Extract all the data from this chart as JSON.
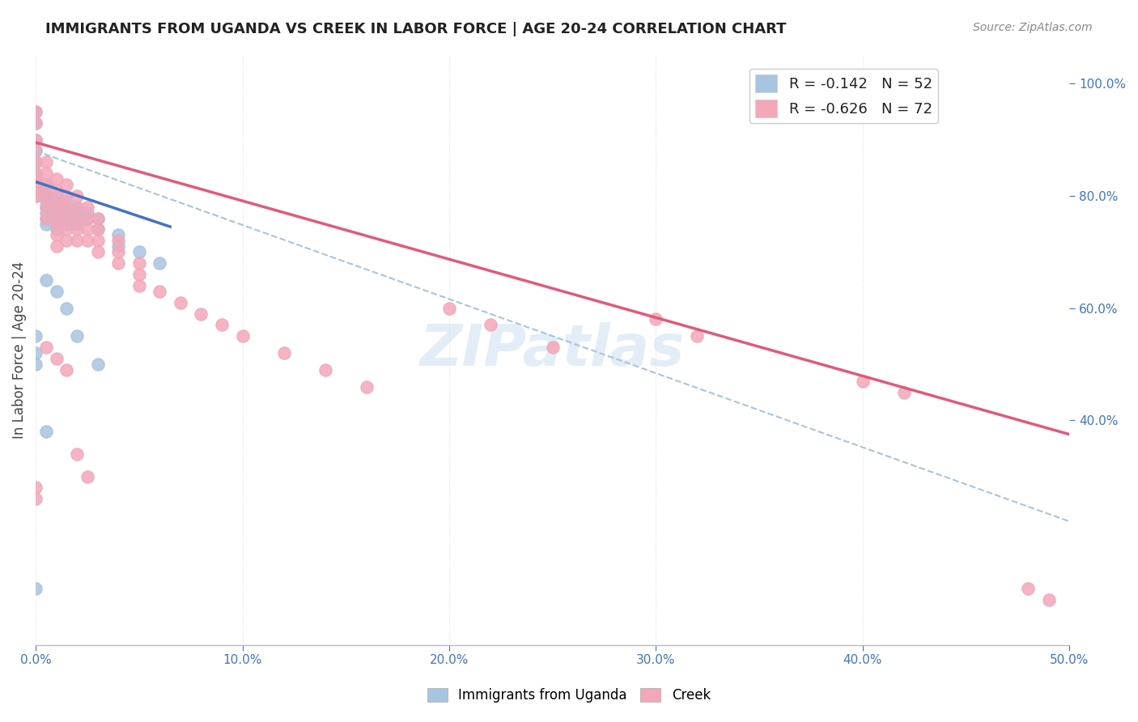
{
  "title": "IMMIGRANTS FROM UGANDA VS CREEK IN LABOR FORCE | AGE 20-24 CORRELATION CHART",
  "source": "Source: ZipAtlas.com",
  "xlabel_bottom": "",
  "ylabel": "In Labor Force | Age 20-24",
  "x_min": 0.0,
  "x_max": 0.5,
  "y_min": 0.0,
  "y_max": 1.05,
  "x_ticks": [
    0.0,
    0.1,
    0.2,
    0.3,
    0.4,
    0.5
  ],
  "x_tick_labels": [
    "0.0%",
    "10.0%",
    "20.0%",
    "30.0%",
    "40.0%",
    "50.0%"
  ],
  "y_ticks_left": [],
  "y_ticks_right": [
    0.4,
    0.6,
    0.8,
    1.0
  ],
  "y_tick_labels_right": [
    "40.0%",
    "60.0%",
    "80.0%",
    "100.0%"
  ],
  "uganda_color": "#a8c4e0",
  "creek_color": "#f4a7b9",
  "uganda_line_color": "#4472c4",
  "creek_line_color": "#e05a7a",
  "dashed_line_color": "#a8c4e0",
  "legend_R_uganda": "-0.142",
  "legend_N_uganda": "52",
  "legend_R_creek": "-0.626",
  "legend_N_creek": "72",
  "uganda_scatter_x": [
    0.0,
    0.0,
    0.0,
    0.0,
    0.0,
    0.0,
    0.0,
    0.0,
    0.0,
    0.0,
    0.005,
    0.005,
    0.005,
    0.005,
    0.005,
    0.005,
    0.005,
    0.005,
    0.01,
    0.01,
    0.01,
    0.01,
    0.01,
    0.01,
    0.01,
    0.015,
    0.015,
    0.015,
    0.015,
    0.015,
    0.02,
    0.02,
    0.02,
    0.02,
    0.025,
    0.025,
    0.03,
    0.03,
    0.04,
    0.04,
    0.05,
    0.06,
    0.0,
    0.0,
    0.0,
    0.005,
    0.01,
    0.015,
    0.02,
    0.03,
    0.005,
    0.0
  ],
  "uganda_scatter_y": [
    0.95,
    0.93,
    0.9,
    0.88,
    0.86,
    0.84,
    0.83,
    0.82,
    0.81,
    0.8,
    0.82,
    0.81,
    0.8,
    0.79,
    0.78,
    0.77,
    0.76,
    0.75,
    0.8,
    0.79,
    0.78,
    0.77,
    0.76,
    0.75,
    0.74,
    0.79,
    0.78,
    0.77,
    0.76,
    0.75,
    0.78,
    0.77,
    0.76,
    0.75,
    0.77,
    0.76,
    0.76,
    0.74,
    0.73,
    0.71,
    0.7,
    0.68,
    0.55,
    0.52,
    0.5,
    0.65,
    0.63,
    0.6,
    0.55,
    0.5,
    0.38,
    0.1
  ],
  "creek_scatter_x": [
    0.0,
    0.0,
    0.0,
    0.0,
    0.0,
    0.0,
    0.0,
    0.0,
    0.0,
    0.0,
    0.005,
    0.005,
    0.005,
    0.005,
    0.005,
    0.005,
    0.01,
    0.01,
    0.01,
    0.01,
    0.01,
    0.01,
    0.01,
    0.015,
    0.015,
    0.015,
    0.015,
    0.015,
    0.015,
    0.02,
    0.02,
    0.02,
    0.02,
    0.02,
    0.025,
    0.025,
    0.025,
    0.025,
    0.03,
    0.03,
    0.03,
    0.03,
    0.04,
    0.04,
    0.04,
    0.05,
    0.05,
    0.05,
    0.06,
    0.07,
    0.08,
    0.09,
    0.1,
    0.12,
    0.14,
    0.16,
    0.2,
    0.22,
    0.25,
    0.3,
    0.32,
    0.4,
    0.42,
    0.48,
    0.49,
    0.005,
    0.01,
    0.015,
    0.02,
    0.025,
    0.0,
    0.0
  ],
  "creek_scatter_y": [
    0.95,
    0.93,
    0.9,
    0.88,
    0.86,
    0.84,
    0.83,
    0.82,
    0.81,
    0.8,
    0.86,
    0.84,
    0.82,
    0.8,
    0.78,
    0.76,
    0.83,
    0.81,
    0.79,
    0.77,
    0.75,
    0.73,
    0.71,
    0.82,
    0.8,
    0.78,
    0.76,
    0.74,
    0.72,
    0.8,
    0.78,
    0.76,
    0.74,
    0.72,
    0.78,
    0.76,
    0.74,
    0.72,
    0.76,
    0.74,
    0.72,
    0.7,
    0.72,
    0.7,
    0.68,
    0.68,
    0.66,
    0.64,
    0.63,
    0.61,
    0.59,
    0.57,
    0.55,
    0.52,
    0.49,
    0.46,
    0.6,
    0.57,
    0.53,
    0.58,
    0.55,
    0.47,
    0.45,
    0.1,
    0.08,
    0.53,
    0.51,
    0.49,
    0.34,
    0.3,
    0.28,
    0.26
  ],
  "uganda_trend_x": [
    0.0,
    0.065
  ],
  "uganda_trend_y": [
    0.825,
    0.745
  ],
  "creek_trend_x": [
    0.0,
    0.5
  ],
  "creek_trend_y": [
    0.895,
    0.375
  ],
  "dashed_trend_x": [
    0.0,
    0.5
  ],
  "dashed_trend_y": [
    0.88,
    0.22
  ],
  "watermark": "ZIPatlas",
  "background_color": "#ffffff",
  "grid_color": "#e0e0e0"
}
